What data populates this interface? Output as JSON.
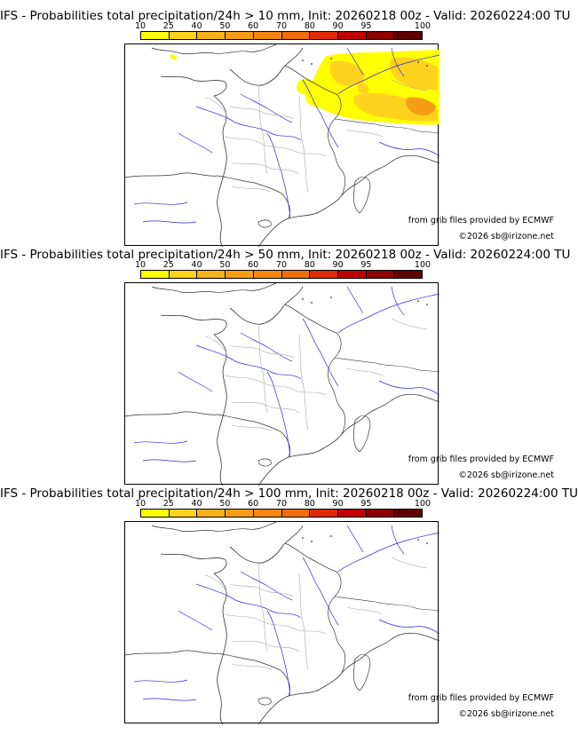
{
  "legend": {
    "ticks": [
      "10",
      "25",
      "40",
      "50",
      "60",
      "70",
      "80",
      "90",
      "95",
      "100"
    ],
    "colors": [
      "#ffff00",
      "#ffd21e",
      "#f7b21a",
      "#f59d14",
      "#f5870f",
      "#f06e0a",
      "#e02a05",
      "#be0000",
      "#8e0000",
      "#600000"
    ]
  },
  "panels": [
    {
      "title": "IFS - Probabilities total precipitation/24h > 10 mm, Init: 20260218 00z - Valid: 20260224:00 TU",
      "has_precip": true
    },
    {
      "title": "IFS - Probabilities total precipitation/24h > 50 mm, Init: 20260218 00z - Valid: 20260224:00 TU",
      "has_precip": false
    },
    {
      "title": "IFS - Probabilities total precipitation/24h > 100 mm, Init: 20260218 00z - Valid: 20260224:00 TU",
      "has_precip": false
    }
  ],
  "credits": {
    "source": "from grib files provided by ECMWF",
    "copyright": "©2026 sb@irizone.net"
  },
  "colors": {
    "coast": "#333333",
    "rivers": "#2a2ad6",
    "borders": "#a8a8a8"
  }
}
